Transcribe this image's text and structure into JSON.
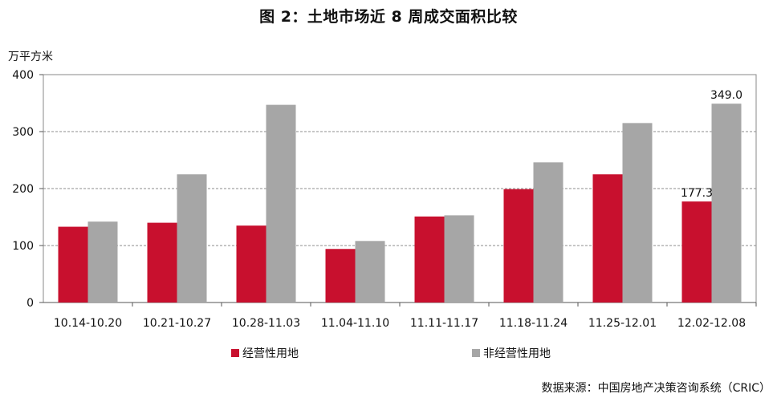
{
  "title": "图 2：土地市场近 8 周成交面积比较",
  "source": "数据来源：中国房地产决策咨询系统（CRIC）",
  "chart_data": {
    "type": "bar",
    "ylabel": "万平方米",
    "ylim": [
      0,
      400
    ],
    "yticks": [
      "0",
      "100",
      "200",
      "300",
      "400"
    ],
    "grid": "dashed horizontal",
    "legend_placement": "bottom",
    "categories": [
      "10.14-10.20",
      "10.21-10.27",
      "10.28-11.03",
      "11.04-11.10",
      "11.11-11.17",
      "11.18-11.24",
      "11.25-12.01",
      "12.02-12.08"
    ],
    "series": [
      {
        "name": "经营性用地",
        "color": "#C8102E",
        "values": [
          133,
          140,
          135,
          94,
          151,
          199,
          225,
          177.3
        ]
      },
      {
        "name": "非经营性用地",
        "color": "#A6A6A6",
        "values": [
          142,
          225,
          347,
          108,
          153,
          246,
          315,
          349.0
        ]
      }
    ],
    "data_labels": [
      {
        "series": 0,
        "index": 7,
        "text": "177.3"
      },
      {
        "series": 1,
        "index": 7,
        "text": "349.0"
      }
    ]
  }
}
